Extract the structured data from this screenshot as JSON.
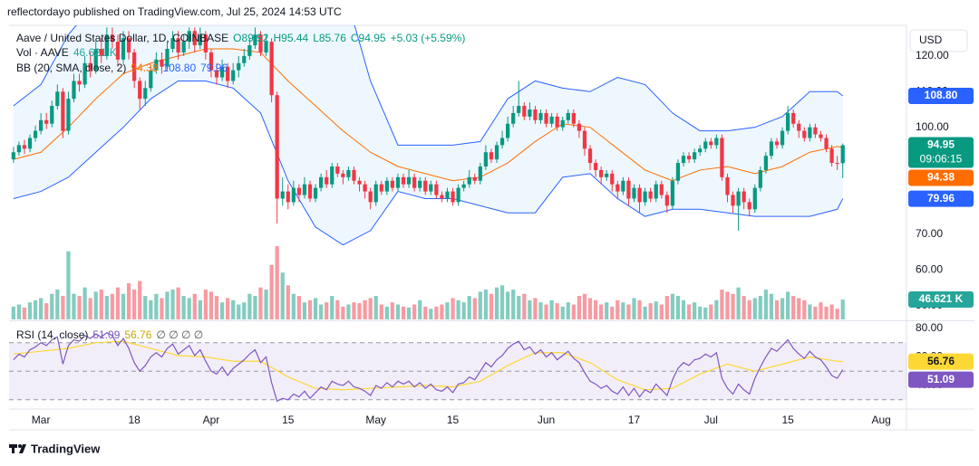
{
  "header": {
    "title": "reflectordayo published on TradingView.com, Jul 25, 2024 14:53 UTC",
    "currency": "USD"
  },
  "footer": {
    "brand": "TradingView"
  },
  "chart_data": [
    {
      "type": "candlestick",
      "legend": {
        "symbol": "Aave / United States Dollar, 1D, COINBASE",
        "quote": [
          "O89.92",
          "H95.44",
          "L85.76",
          "C94.95",
          "+5.03 (+5.59%)"
        ],
        "volume": "Vol · AAVE",
        "bollinger": "BB (20, SMA, close, 2)"
      },
      "up_color": "#089981",
      "down_color": "#f23645",
      "xlim": [
        -0.8,
        162.6
      ],
      "xticks": [
        {
          "value": 5,
          "label": "Mar"
        },
        {
          "value": 22,
          "label": "18"
        },
        {
          "value": 36,
          "label": "Apr"
        },
        {
          "value": 50,
          "label": "15"
        },
        {
          "value": 66,
          "label": "May"
        },
        {
          "value": 80,
          "label": "15"
        },
        {
          "value": 97,
          "label": "Jun"
        },
        {
          "value": 113,
          "label": "17"
        },
        {
          "value": 127,
          "label": "Jul"
        },
        {
          "value": 141,
          "label": "15"
        },
        {
          "value": 158,
          "label": "Aug"
        }
      ],
      "ylim": [
        46.1,
        128.6
      ],
      "yticks": [
        {
          "value": 50,
          "label": "50.00"
        },
        {
          "value": 60,
          "label": "60.00"
        },
        {
          "value": 70,
          "label": "70.00"
        },
        {
          "value": 80,
          "label": "80.00"
        },
        {
          "value": 90,
          "label": "90.00"
        },
        {
          "value": 100,
          "label": "100.00"
        },
        {
          "value": 110,
          "label": "110.00"
        },
        {
          "value": 120,
          "label": "120.00"
        }
      ],
      "open": [
        91,
        93,
        95,
        94,
        97,
        99,
        102,
        101,
        106,
        110,
        99,
        108,
        113,
        112,
        118,
        116,
        122,
        120,
        126,
        124,
        119,
        125,
        121,
        113,
        108,
        111,
        116,
        119,
        117,
        122,
        125,
        121,
        124,
        127,
        123,
        126,
        121,
        116,
        114,
        117,
        113,
        116,
        118,
        120,
        123,
        126,
        121,
        124,
        109,
        80,
        82,
        79,
        83,
        81,
        84,
        80,
        83,
        86,
        84,
        89,
        87,
        86,
        88,
        85,
        84,
        82,
        79,
        84,
        82,
        85,
        83,
        86,
        84,
        86,
        83,
        85,
        82,
        84,
        81,
        80,
        82,
        79,
        83,
        84,
        86,
        85,
        89,
        93,
        91,
        95,
        97,
        101,
        104,
        106,
        103,
        105,
        102,
        104,
        101,
        103,
        100,
        102,
        104,
        101,
        99,
        94,
        90,
        88,
        86,
        87,
        84,
        82,
        85,
        80,
        83,
        79,
        82,
        80,
        84,
        81,
        78,
        85,
        90,
        92,
        91,
        93,
        94,
        96,
        95,
        97,
        86,
        81,
        78,
        82,
        79,
        77,
        83,
        88,
        92,
        96,
        95,
        99,
        104,
        101,
        99,
        97,
        100,
        98,
        97,
        94,
        90,
        89.92
      ],
      "high": [
        94.5,
        96,
        96.5,
        98,
        100.5,
        104,
        104,
        107.5,
        112,
        111,
        110,
        115,
        115,
        120,
        121,
        124,
        125,
        128,
        128,
        126,
        127,
        127,
        122,
        114,
        113,
        117,
        121,
        121,
        124,
        127,
        127,
        126,
        128,
        128,
        128,
        127,
        122,
        118,
        119,
        118,
        118,
        120,
        122,
        125,
        128,
        127,
        126,
        125,
        110,
        86,
        84,
        85,
        84,
        86,
        85,
        84,
        87,
        88,
        90,
        90,
        88,
        89,
        89,
        86,
        85,
        83,
        85,
        85,
        86,
        86,
        87,
        87,
        88,
        87,
        86,
        86,
        85,
        85,
        82,
        83,
        83,
        84,
        85,
        88,
        87,
        90,
        95,
        94,
        96,
        99,
        103,
        106,
        113,
        107,
        107,
        106,
        105,
        105,
        104,
        104,
        103,
        105,
        105,
        102,
        100,
        95,
        91,
        89,
        88,
        88,
        85,
        86,
        86,
        84,
        84,
        83,
        83,
        85,
        85,
        82,
        86,
        91,
        93,
        93,
        94,
        95,
        97,
        97,
        98,
        98,
        87,
        82,
        83,
        83,
        80,
        84,
        89,
        93,
        97,
        97,
        100,
        106,
        105,
        102,
        100,
        101,
        101,
        99,
        98,
        95,
        92,
        95.44
      ],
      "low": [
        90,
        92,
        92.5,
        93,
        96,
        98,
        99.5,
        100,
        105,
        97,
        98,
        107,
        110,
        111,
        114,
        115,
        118,
        119,
        122,
        117,
        118,
        119,
        111,
        105,
        106,
        110,
        115,
        115,
        116,
        121,
        119,
        120,
        122,
        121,
        122,
        119,
        114,
        112,
        113,
        111,
        112,
        114,
        117,
        119,
        122,
        120,
        120,
        107,
        73,
        78,
        77,
        78,
        79,
        80,
        79,
        79,
        82,
        83,
        83,
        86,
        84,
        85,
        84,
        82,
        80,
        77,
        78,
        81,
        81,
        82,
        82,
        83,
        83,
        82,
        82,
        81,
        81,
        80,
        79,
        79,
        78,
        78,
        82,
        83,
        84,
        84,
        88,
        90,
        90,
        94,
        96,
        100,
        103,
        102,
        102,
        101,
        101,
        100,
        100,
        99,
        99,
        101,
        100,
        97,
        92,
        88,
        86,
        84,
        85,
        82,
        80,
        81,
        78,
        79,
        76,
        78,
        79,
        79,
        80,
        76,
        77,
        84,
        89,
        90,
        90,
        92,
        93,
        94,
        94,
        85,
        79,
        76,
        71,
        77,
        75,
        76,
        82,
        87,
        91,
        94,
        94,
        98,
        100,
        97,
        96,
        96,
        97,
        96,
        93,
        89,
        88,
        85.76
      ],
      "close": [
        93,
        95,
        94,
        97,
        99,
        102,
        101,
        106,
        110,
        99,
        108,
        113,
        112,
        118,
        116,
        122,
        120,
        126,
        124,
        119,
        125,
        121,
        113,
        108,
        111,
        116,
        119,
        117,
        122,
        125,
        121,
        124,
        127,
        123,
        126,
        121,
        116,
        114,
        117,
        113,
        116,
        118,
        120,
        123,
        126,
        121,
        124,
        109,
        80,
        82,
        79,
        83,
        81,
        84,
        80,
        83,
        86,
        84,
        89,
        87,
        86,
        88,
        85,
        84,
        82,
        79,
        84,
        82,
        85,
        83,
        86,
        84,
        86,
        83,
        85,
        82,
        84,
        81,
        80,
        82,
        79,
        83,
        84,
        86,
        85,
        89,
        93,
        91,
        95,
        97,
        101,
        104,
        106,
        103,
        105,
        102,
        104,
        101,
        103,
        100,
        102,
        104,
        101,
        99,
        94,
        90,
        88,
        86,
        87,
        84,
        82,
        85,
        80,
        83,
        79,
        82,
        80,
        84,
        81,
        78,
        85,
        90,
        92,
        91,
        93,
        94,
        96,
        95,
        97,
        86,
        81,
        78,
        82,
        79,
        77,
        83,
        88,
        92,
        96,
        95,
        99,
        104,
        101,
        99,
        97,
        100,
        98,
        97,
        94,
        90,
        89.92,
        94.95
      ],
      "volume": {
        "ylim": [
          0,
          690
        ],
        "up_color": "rgba(8,153,129,0.5)",
        "down_color": "rgba(242,54,69,0.5)",
        "values": [
          30,
          35,
          28,
          40,
          45,
          50,
          38,
          60,
          70,
          55,
          160,
          60,
          55,
          75,
          50,
          65,
          70,
          55,
          60,
          75,
          60,
          85,
          70,
          90,
          55,
          45,
          60,
          50,
          65,
          70,
          75,
          55,
          50,
          60,
          45,
          70,
          65,
          55,
          40,
          50,
          45,
          35,
          40,
          60,
          55,
          75,
          70,
          128,
          172,
          110,
          80,
          60,
          55,
          40,
          45,
          50,
          35,
          40,
          55,
          45,
          30,
          35,
          40,
          38,
          45,
          50,
          55,
          35,
          30,
          40,
          35,
          30,
          28,
          35,
          45,
          30,
          25,
          30,
          35,
          40,
          50,
          45,
          40,
          55,
          50,
          65,
          70,
          60,
          75,
          80,
          65,
          70,
          55,
          60,
          45,
          50,
          40,
          35,
          45,
          38,
          30,
          40,
          35,
          55,
          60,
          50,
          45,
          35,
          40,
          30,
          45,
          40,
          35,
          50,
          45,
          30,
          38,
          42,
          35,
          55,
          60,
          55,
          45,
          35,
          40,
          30,
          28,
          35,
          45,
          70,
          65,
          60,
          75,
          55,
          45,
          50,
          55,
          70,
          60,
          45,
          50,
          65,
          55,
          50,
          45,
          35,
          30,
          40,
          30,
          35,
          25,
          46.621
        ]
      },
      "bollinger": {
        "x": [
          0,
          5,
          10,
          15,
          20,
          25,
          30,
          35,
          40,
          45,
          50,
          55,
          60,
          65,
          70,
          75,
          80,
          85,
          90,
          95,
          100,
          105,
          110,
          115,
          120,
          125,
          130,
          135,
          140,
          145,
          150,
          151
        ],
        "upper": [
          106,
          112,
          126,
          135,
          140,
          140,
          135,
          132,
          131,
          132,
          140,
          142,
          140,
          113,
          95,
          95,
          95,
          96,
          108,
          113,
          111,
          110,
          114,
          112,
          104,
          99,
          99,
          100,
          103,
          110,
          110,
          108.8
        ],
        "middle": [
          91,
          93,
          100,
          108,
          115,
          118,
          120,
          122,
          122,
          121,
          113,
          106,
          99,
          93,
          89,
          87,
          85,
          86,
          90,
          96,
          101,
          100,
          94,
          88,
          85,
          88,
          89,
          87,
          89,
          93,
          94.6,
          94.38
        ],
        "lower": [
          80,
          82,
          86,
          93,
          100,
          108,
          113,
          113,
          111,
          104,
          85,
          72,
          67,
          71,
          82,
          80,
          80,
          78,
          76,
          76,
          86,
          87,
          80,
          75,
          77,
          77,
          76,
          75,
          75,
          75,
          77,
          79.96
        ],
        "band_color": "#2962ff",
        "middle_color": "#ff6d00",
        "fill": "rgba(33,150,243,0.08)"
      },
      "badges": [
        {
          "value": 108.8,
          "label": "108.80",
          "color": "#2962ff"
        },
        {
          "value": 94.95,
          "label": "94.95",
          "countdown": "09:06:15",
          "color": "#089981"
        },
        {
          "value": 94.38,
          "label": "94.38",
          "color": "#ff6d00"
        },
        {
          "value": 79.96,
          "label": "79.96",
          "color": "#2962ff"
        },
        {
          "value": 46.621,
          "label": "46.621 K",
          "color": "#26a69a",
          "axis": "volume"
        }
      ]
    },
    {
      "type": "line",
      "title": "RSI (14, close)",
      "icons": "∅ ∅ ∅ ∅",
      "xlim": [
        -0.8,
        162.6
      ],
      "ylim": [
        24.8,
        84.4
      ],
      "yticks": [
        {
          "value": 40,
          "label": "40.00"
        },
        {
          "value": 60,
          "label": "60.00"
        },
        {
          "value": 80,
          "label": "80.00"
        }
      ],
      "levels": [
        70,
        50,
        30
      ],
      "band_fill": "rgba(126,87,194,0.1)",
      "series": [
        {
          "color": "#7e57c2",
          "values": [
            58,
            62,
            60,
            65,
            67,
            70,
            68,
            72,
            74,
            55,
            68,
            72,
            71,
            75,
            73,
            76,
            74,
            77,
            75,
            68,
            73,
            66,
            56,
            50,
            54,
            60,
            63,
            60,
            66,
            69,
            62,
            65,
            68,
            61,
            65,
            57,
            50,
            48,
            53,
            47,
            52,
            55,
            58,
            62,
            65,
            56,
            60,
            42,
            29,
            31,
            30,
            34,
            32,
            36,
            31,
            35,
            39,
            37,
            43,
            41,
            40,
            43,
            39,
            38,
            36,
            33,
            40,
            38,
            42,
            39,
            43,
            41,
            43,
            39,
            42,
            38,
            41,
            37,
            36,
            39,
            35,
            41,
            42,
            46,
            44,
            50,
            56,
            53,
            58,
            61,
            66,
            69,
            71,
            65,
            67,
            62,
            65,
            60,
            63,
            58,
            61,
            64,
            59,
            56,
            49,
            43,
            41,
            38,
            40,
            36,
            34,
            39,
            33,
            38,
            32,
            37,
            35,
            41,
            37,
            33,
            44,
            52,
            56,
            54,
            58,
            59,
            62,
            60,
            63,
            45,
            38,
            34,
            41,
            37,
            34,
            45,
            53,
            60,
            66,
            64,
            68,
            72,
            66,
            62,
            59,
            64,
            60,
            58,
            53,
            47,
            45,
            51.09
          ]
        },
        {
          "color": "#fdd835",
          "x": [
            0,
            5,
            10,
            15,
            20,
            25,
            30,
            35,
            40,
            45,
            50,
            55,
            60,
            65,
            70,
            75,
            80,
            85,
            90,
            95,
            100,
            105,
            110,
            115,
            120,
            125,
            130,
            135,
            140,
            145,
            150,
            151
          ],
          "values": [
            62,
            64,
            66,
            70,
            71,
            66,
            61,
            60,
            57,
            57,
            46,
            38,
            37,
            38,
            39,
            40,
            39,
            43,
            54,
            63,
            63,
            56,
            44,
            37,
            38,
            48,
            55,
            50,
            55,
            60,
            57,
            56.76
          ]
        }
      ],
      "badges": [
        {
          "value": 56.76,
          "label": "56.76",
          "color": "#fdd835",
          "text_color": "#131722"
        },
        {
          "value": 51.09,
          "label": "51.09",
          "color": "#7e57c2"
        }
      ]
    }
  ]
}
